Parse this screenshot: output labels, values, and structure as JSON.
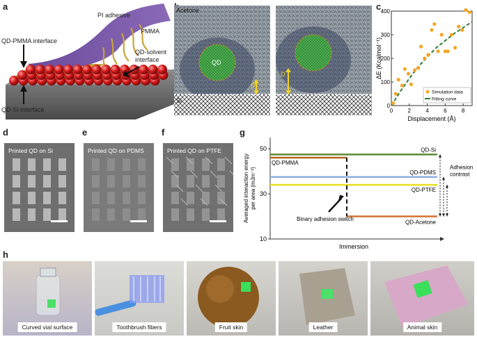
{
  "panels": {
    "a": "a",
    "b": "b",
    "c": "c",
    "d": "d",
    "e": "e",
    "f": "f",
    "g": "g",
    "h": "h"
  },
  "panel_a": {
    "pi_adhesive": "PI adhesive",
    "pmma": "PMMA",
    "qd_pmma_interface": "QD-PMMA interface",
    "qd_solvent_interface": "QD-solvent interface",
    "qd_si_interface": "QD-Si interface"
  },
  "panel_b": {
    "acetone": "Acetone",
    "qd": "QD",
    "d": "D",
    "si": "Si"
  },
  "panel_c": {
    "chart_data": {
      "type": "scatter",
      "xlabel": "Displacement (Å)",
      "ylabel": "ΔE (Kcalmol⁻¹)",
      "xlim": [
        0,
        9
      ],
      "ylim": [
        0,
        400
      ],
      "xticks": [
        0,
        2,
        4,
        6,
        8
      ],
      "yticks": [
        0,
        100,
        200,
        300,
        400
      ],
      "legend": [
        "Simulation data",
        "Fitting curve"
      ],
      "legend_position": "bottom-right",
      "series": [
        {
          "name": "Simulation data",
          "x": [
            0.2,
            0.5,
            0.8,
            1.2,
            1.5,
            1.9,
            2.2,
            2.6,
            3.0,
            3.3,
            3.7,
            4.1,
            4.5,
            4.8,
            5.2,
            5.6,
            6.0,
            6.3,
            6.7,
            7.1,
            7.5,
            7.9,
            8.3,
            8.7
          ],
          "y": [
            10,
            50,
            110,
            85,
            155,
            135,
            90,
            150,
            160,
            250,
            200,
            215,
            320,
            345,
            230,
            300,
            230,
            230,
            300,
            245,
            335,
            320,
            405,
            395
          ]
        },
        {
          "name": "Fitting curve",
          "x": [
            0,
            1,
            2,
            3,
            4,
            5,
            6,
            7,
            8,
            9
          ],
          "y": [
            0,
            60,
            115,
            165,
            205,
            245,
            275,
            305,
            330,
            355
          ]
        }
      ]
    }
  },
  "panel_d": {
    "label": "Printed QD on Si"
  },
  "panel_e": {
    "label": "Printed QD on PDMS"
  },
  "panel_f": {
    "label": "Printed QD on PTFE"
  },
  "panel_g": {
    "chart_data": {
      "type": "line",
      "ylabel": "Averaged interaction energy per area (mJm⁻²)",
      "xlabel": "Immersion",
      "ylim": [
        10,
        55
      ],
      "yticks": [
        10,
        30,
        50
      ],
      "series": [
        {
          "name": "QD-Si",
          "value": 47.5,
          "color": "#5a8a30"
        },
        {
          "name": "QD-PMMA",
          "value": 47.0,
          "color": "#b5651d"
        },
        {
          "name": "QD-PDMS",
          "value": 37.5,
          "color": "#8fb0e0"
        },
        {
          "name": "QD-PTFE",
          "value": 34.0,
          "color": "#e8e020"
        },
        {
          "name": "QD-Acetone",
          "value": 20.0,
          "color": "#d07030"
        }
      ],
      "annotations": [
        "Adhesion contrast",
        "Binary adhesion switch"
      ]
    }
  },
  "panel_h": {
    "captions": [
      "Curved vial surface",
      "Toothbrush fibers",
      "Fruit skin",
      "Leather",
      "Animal skin"
    ]
  }
}
